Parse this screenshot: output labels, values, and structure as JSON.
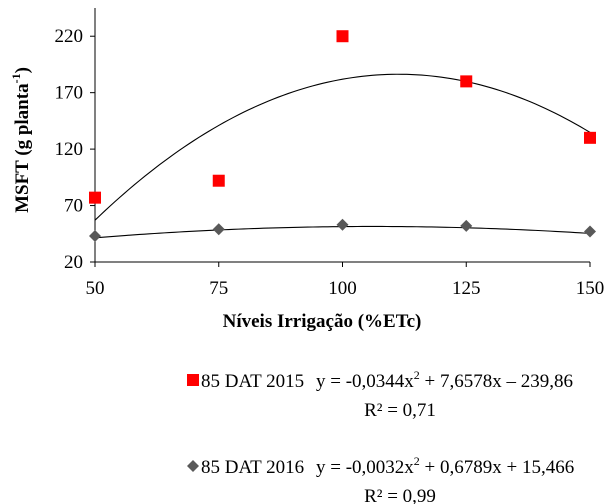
{
  "chart_data": {
    "type": "scatter",
    "xlabel": "Níveis Irrigação (%ETc)",
    "ylabel_main": "MSFT (g planta",
    "ylabel_sup": "-1",
    "ylabel_close": ")",
    "xlim": [
      50,
      150
    ],
    "ylim": [
      20,
      245
    ],
    "xticks": [
      50,
      75,
      100,
      125,
      150
    ],
    "yticks": [
      20,
      70,
      120,
      170,
      220
    ],
    "grid": false,
    "legend_position": "bottom",
    "series": [
      {
        "name": "85 DAT 2015",
        "marker": "square",
        "color": "#ff0000",
        "x": [
          50,
          75,
          100,
          125,
          150
        ],
        "y": [
          77,
          92,
          220,
          180,
          130
        ],
        "fit": {
          "a": -0.0344,
          "b": 7.6578,
          "c": -239.86
        },
        "equation_prefix": "y = -0,0344x",
        "equation_exp": "2",
        "equation_suffix": " + 7,6578x – 239,86",
        "r2": "R² = 0,71"
      },
      {
        "name": "85 DAT 2016",
        "marker": "diamond",
        "color": "#595959",
        "x": [
          50,
          75,
          100,
          125,
          150
        ],
        "y": [
          43,
          49,
          53,
          52,
          47
        ],
        "fit": {
          "a": -0.0032,
          "b": 0.6789,
          "c": 15.466
        },
        "equation_prefix": "y = -0,0032x",
        "equation_exp": "2",
        "equation_suffix": " + 0,6789x + 15,466",
        "r2": "R² = 0,99"
      }
    ]
  }
}
